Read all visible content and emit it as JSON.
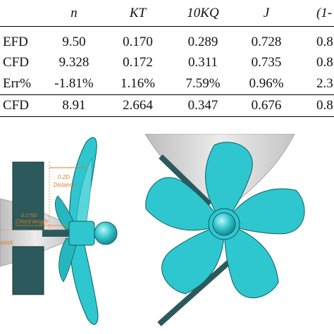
{
  "table": {
    "headers": [
      "",
      "n",
      "KT",
      "10KQ",
      "J",
      "(1-"
    ],
    "rows": [
      [
        "EFD",
        "9.50",
        "0.170",
        "0.289",
        "0.728",
        "0.8"
      ],
      [
        "CFD",
        "9.328",
        "0.172",
        "0.311",
        "0.735",
        "0.8"
      ],
      [
        "Err%",
        "-1.81%",
        "1.16%",
        "7.59%",
        "0.96%",
        "2.3"
      ],
      [
        "CFD",
        "8.91",
        "2.664",
        "0.347",
        "0.676",
        "0.8"
      ]
    ]
  },
  "figure": {
    "side_view_labels": {
      "distance_value": "0.2D",
      "distance_label": "Distance",
      "small_dim": "0.175D",
      "chord_label": "Chord length",
      "stock_label": "stock"
    },
    "colors": {
      "propeller": "#2ec7cf",
      "propeller_dark": "#1a8f97",
      "hull": "#d6d6d6",
      "rudder": "#2c5a5c",
      "dimension": "#e07a1f"
    }
  }
}
